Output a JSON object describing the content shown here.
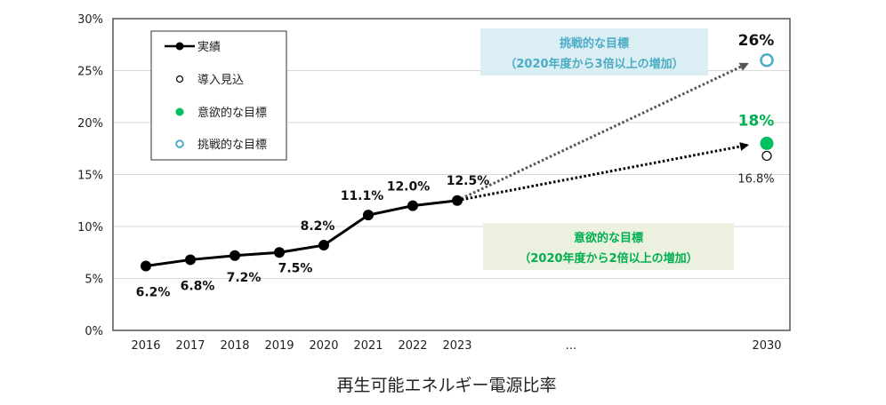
{
  "chart_data": {
    "type": "line",
    "title": "再生可能エネルギー電源比率",
    "xlabel": "",
    "ylabel": "",
    "ylim": [
      0,
      30
    ],
    "y_ticks": [
      "0%",
      "5%",
      "10%",
      "15%",
      "20%",
      "25%",
      "30%"
    ],
    "y_tick_values": [
      0,
      5,
      10,
      15,
      20,
      25,
      30
    ],
    "grid": true,
    "x_categories": [
      "2016",
      "2017",
      "2018",
      "2019",
      "2020",
      "2021",
      "2022",
      "2023",
      "…",
      "2030"
    ],
    "legend_position": "top-left",
    "series": [
      {
        "name": "実績",
        "color": "#000000",
        "x": [
          "2016",
          "2017",
          "2018",
          "2019",
          "2020",
          "2021",
          "2022",
          "2023"
        ],
        "values": [
          6.2,
          6.8,
          7.2,
          7.5,
          8.2,
          11.1,
          12.0,
          12.5
        ],
        "labels": [
          "6.2%",
          "6.8%",
          "7.2%",
          "7.5%",
          "8.2%",
          "11.1%",
          "12.0%",
          "12.5%"
        ]
      },
      {
        "name": "導入見込",
        "color": "#000000",
        "x": [
          "2030"
        ],
        "values": [
          16.8
        ],
        "labels": [
          "16.8%"
        ]
      },
      {
        "name": "意欲的な目標",
        "color": "#00c060",
        "x": [
          "2030"
        ],
        "values": [
          18
        ],
        "labels": [
          "18%"
        ]
      },
      {
        "name": "挑戦的な目標",
        "color": "#4bacc6",
        "x": [
          "2030"
        ],
        "values": [
          26
        ],
        "labels": [
          "26%"
        ]
      }
    ],
    "annotations": [
      {
        "id": "challenge",
        "line1": "挑戦的な目標",
        "line2": "（2020年度から3倍以上の増加）",
        "text_color": "#4bacc6",
        "bg_color": "#daeef3"
      },
      {
        "id": "ambitious",
        "line1": "意欲的な目標",
        "line2": "（2020年度から2倍以上の増加）",
        "text_color": "#00b050",
        "bg_color": "#ebf1de"
      }
    ]
  }
}
